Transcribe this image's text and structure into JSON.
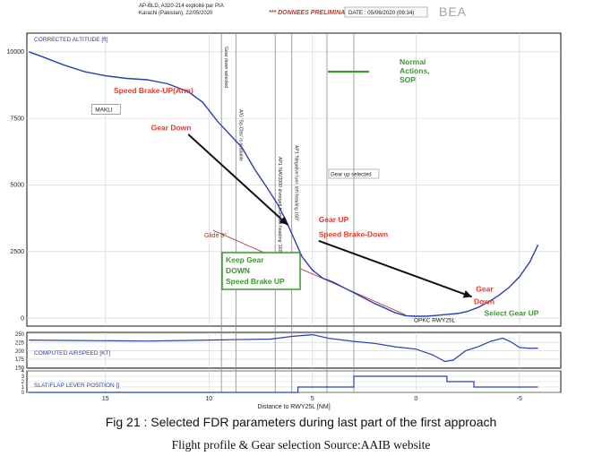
{
  "header": {
    "line1": "AP-BLD, A320-214 exploité par PIA",
    "line2": "Karachi (Pakistan), 22/05/2020",
    "prelim": "*** DONNEES PRELIMINAIRES ***",
    "date": "DATE : 05/06/2020 (09:34)",
    "logo": "BEA"
  },
  "caption": {
    "figure": "Fig 21 :  Selected FDR parameters during last part of the first approach",
    "source": "Flight profile & Gear selection Source:AAIB website"
  },
  "colors": {
    "series": "#2a3eb1",
    "annotation_red": "#e8392a",
    "annotation_green": "#3a9a2e",
    "glide": "#a0322f"
  },
  "chart_data": [
    {
      "type": "line",
      "title": "CORRECTED ALTITUDE [ft]",
      "xlabel": "Distance to RWY25L [NM]",
      "xlim": [
        18.8,
        -7.0
      ],
      "x_ticks": [
        15,
        10,
        5,
        0,
        -5
      ],
      "ylim": [
        -300,
        10700
      ],
      "y_ticks": [
        0,
        2500,
        5000,
        7500,
        10000
      ],
      "series": [
        {
          "x": [
            18.7,
            18.0,
            17.0,
            16.0,
            15.0,
            14.0,
            13.0,
            12.0,
            11.0,
            10.3,
            9.6,
            9.0,
            8.4,
            7.8,
            7.2,
            6.7,
            6.3,
            5.9,
            5.5,
            5.0,
            4.5,
            4.0,
            3.5,
            3.0,
            2.5,
            2.0,
            1.5,
            1.0,
            0.5,
            0.0,
            -0.5,
            -1.0,
            -1.5,
            -2.0,
            -2.5,
            -3.0,
            -3.5,
            -4.0,
            -4.5,
            -5.0,
            -5.5,
            -5.9
          ],
          "y": [
            10000,
            9800,
            9500,
            9250,
            9100,
            9000,
            8950,
            8800,
            8500,
            8100,
            7400,
            6900,
            6400,
            5600,
            4900,
            4300,
            3700,
            3000,
            2300,
            1800,
            1500,
            1350,
            1150,
            950,
            750,
            550,
            380,
            200,
            90,
            70,
            70,
            100,
            140,
            170,
            250,
            400,
            600,
            850,
            1150,
            1550,
            2100,
            2750
          ]
        }
      ],
      "glide_label": "Glide 3°",
      "glide_line": {
        "x": [
          9.8,
          0.5
        ],
        "y": [
          3300,
          120
        ]
      },
      "event_lines": [
        {
          "label": "Gear down selected",
          "x": 9.4
        },
        {
          "label": "A/G 'Sp-Clbs' is available",
          "x": 8.7
        },
        {
          "label": "AP1 'NAV2000 diverged from left heading '160''",
          "x": 6.8
        },
        {
          "label": "AP1 'Negative turn: left heading 160''",
          "x": 6.0
        },
        {
          "label": "Gear up selected",
          "x": 4.3
        },
        {
          "x": 3.0
        }
      ],
      "point_labels": [
        {
          "label": "MAKLI",
          "x": 15.5,
          "y": 7750
        },
        {
          "label": "OPKC RWY25L",
          "x": 0.1,
          "y": -150
        }
      ],
      "legend": {
        "label": "Normal Actions, SOP"
      },
      "annotations": [
        {
          "text": "Speed Brake-UP(Arm)",
          "x": 14.6,
          "y": 8450
        },
        {
          "text": "Gear Down",
          "x": 12.8,
          "y": 7050
        },
        {
          "text": "Gear UP",
          "x": 4.7,
          "y": 3600
        },
        {
          "text": "Speed Brake-Down",
          "x": 4.7,
          "y": 3050
        },
        {
          "text": "Gear",
          "x": -2.9,
          "y": 1000
        },
        {
          "text": "Down",
          "x": -2.8,
          "y": 520
        },
        {
          "text": "Select Gear UP",
          "x": -3.3,
          "y": 80
        }
      ],
      "green_box": [
        "Keep Gear",
        "DOWN",
        "Speed Brake UP"
      ],
      "arrows": [
        {
          "from": [
            11.0,
            6900
          ],
          "to": [
            6.2,
            3500
          ]
        },
        {
          "from": [
            4.7,
            2900
          ],
          "to": [
            -2.7,
            800
          ]
        }
      ]
    },
    {
      "type": "line",
      "title": "COMPUTED AIRSPEED [KT]",
      "ylim": [
        148,
        255
      ],
      "y_ticks": [
        150,
        175,
        200,
        225,
        250
      ],
      "series": [
        {
          "x": [
            18.7,
            17.0,
            15.0,
            13.0,
            11.0,
            9.0,
            7.0,
            6.0,
            5.0,
            4.2,
            3.0,
            2.0,
            1.0,
            0.0,
            -0.8,
            -1.4,
            -1.8,
            -2.4,
            -3.0,
            -3.6,
            -4.2,
            -4.6,
            -5.0,
            -5.5,
            -5.9
          ],
          "y": [
            232,
            231,
            230,
            229,
            231,
            233,
            235,
            243,
            248,
            237,
            228,
            222,
            212,
            205,
            188,
            168,
            172,
            200,
            212,
            228,
            238,
            226,
            210,
            207,
            208
          ]
        }
      ]
    },
    {
      "type": "line",
      "title": "SLAT/FLAP LEVER POSITION []",
      "ylim": [
        0,
        4
      ],
      "y_ticks": [
        0,
        1,
        2,
        3,
        4
      ],
      "series": [
        {
          "x": [
            18.7,
            5.7,
            5.7,
            3.0,
            3.0,
            -1.5,
            -1.5,
            -2.8,
            -2.8,
            -5.9
          ],
          "y": [
            0,
            0,
            1,
            1,
            3,
            3,
            2,
            2,
            1,
            1
          ]
        }
      ]
    }
  ]
}
